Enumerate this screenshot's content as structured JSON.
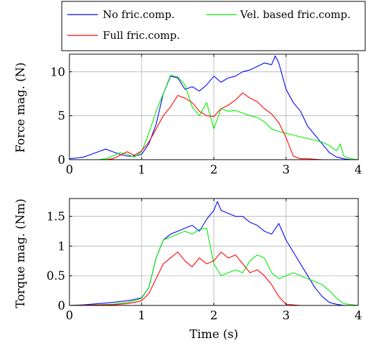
{
  "legend": {
    "entries": [
      {
        "label": "No fric.comp.",
        "color": "#0000ff"
      },
      {
        "label": "Vel. based fric.comp.",
        "color": "#00ee00"
      },
      {
        "label": "Full fric.comp.",
        "color": "#ff0000"
      }
    ]
  },
  "chart_data": [
    {
      "type": "line",
      "title": "",
      "xlabel": "",
      "ylabel": "Force mag. (N)",
      "xlim": [
        0,
        4
      ],
      "ylim": [
        0,
        12
      ],
      "xticks": [
        0,
        1,
        2,
        3,
        4
      ],
      "yticks": [
        0,
        5,
        10
      ],
      "grid": true,
      "series": [
        {
          "name": "No fric.comp.",
          "color": "#0000ff",
          "x": [
            0,
            0.1,
            0.2,
            0.3,
            0.4,
            0.5,
            0.6,
            0.7,
            0.8,
            0.9,
            1.0,
            1.1,
            1.2,
            1.3,
            1.4,
            1.5,
            1.6,
            1.7,
            1.8,
            1.9,
            2.0,
            2.1,
            2.2,
            2.3,
            2.4,
            2.5,
            2.6,
            2.7,
            2.8,
            2.85,
            2.9,
            3.0,
            3.1,
            3.2,
            3.3,
            3.4,
            3.5,
            3.6,
            3.7,
            3.8,
            3.9,
            4.0
          ],
          "y": [
            0.1,
            0.2,
            0.3,
            0.6,
            0.9,
            1.2,
            0.9,
            0.6,
            0.4,
            0.4,
            0.6,
            1.8,
            4.0,
            7.5,
            9.5,
            9.3,
            8.0,
            8.3,
            7.8,
            8.5,
            9.5,
            8.8,
            9.3,
            9.5,
            10.0,
            10.2,
            10.6,
            11.0,
            10.8,
            11.8,
            11.0,
            8.0,
            6.5,
            5.5,
            3.8,
            2.8,
            1.8,
            0.8,
            0.3,
            0.1,
            0.0,
            0.0
          ]
        },
        {
          "name": "Vel. based fric.comp.",
          "color": "#00ee00",
          "x": [
            0,
            0.2,
            0.4,
            0.5,
            0.6,
            0.7,
            0.8,
            0.9,
            1.0,
            1.1,
            1.2,
            1.3,
            1.4,
            1.5,
            1.6,
            1.7,
            1.8,
            1.9,
            2.0,
            2.1,
            2.2,
            2.3,
            2.4,
            2.5,
            2.6,
            2.7,
            2.8,
            2.9,
            3.0,
            3.1,
            3.2,
            3.3,
            3.4,
            3.5,
            3.6,
            3.7,
            3.75,
            3.8,
            3.9,
            4.0
          ],
          "y": [
            0,
            0,
            0,
            0.1,
            0.4,
            0.8,
            0.6,
            0.3,
            0.9,
            3.0,
            5.5,
            7.5,
            9.6,
            9.4,
            8.5,
            6.0,
            5.0,
            6.5,
            3.5,
            5.8,
            5.5,
            5.6,
            5.3,
            5.0,
            4.8,
            4.3,
            3.5,
            3.2,
            3.0,
            2.8,
            2.6,
            2.4,
            2.2,
            2.0,
            1.6,
            1.0,
            1.8,
            0.4,
            0.1,
            0.0
          ]
        },
        {
          "name": "Full fric.comp.",
          "color": "#ff0000",
          "x": [
            0,
            0.5,
            0.6,
            0.7,
            0.8,
            0.9,
            1.0,
            1.1,
            1.2,
            1.3,
            1.4,
            1.5,
            1.6,
            1.7,
            1.8,
            1.9,
            2.0,
            2.1,
            2.2,
            2.3,
            2.4,
            2.5,
            2.6,
            2.7,
            2.8,
            2.9,
            3.0,
            3.1,
            3.2,
            3.3,
            3.5,
            3.7,
            4.0
          ],
          "y": [
            0,
            0,
            0.1,
            0.5,
            0.9,
            0.5,
            1.0,
            2.0,
            3.5,
            5.0,
            6.0,
            7.3,
            7.0,
            6.5,
            5.5,
            5.0,
            4.9,
            5.8,
            6.2,
            6.8,
            7.6,
            7.0,
            6.6,
            5.8,
            5.2,
            4.2,
            2.5,
            0.4,
            0.1,
            0.1,
            0.0,
            0.0,
            0.0
          ]
        }
      ]
    },
    {
      "type": "line",
      "title": "",
      "xlabel": "Time (s)",
      "ylabel": "Torque mag. (Nm)",
      "xlim": [
        0,
        4
      ],
      "ylim": [
        0,
        1.8
      ],
      "xticks": [
        0,
        1,
        2,
        3,
        4
      ],
      "yticks": [
        0,
        0.5,
        1,
        1.5
      ],
      "grid": true,
      "series": [
        {
          "name": "No fric.comp.",
          "color": "#0000ff",
          "x": [
            0,
            0.2,
            0.4,
            0.6,
            0.8,
            0.9,
            1.0,
            1.1,
            1.2,
            1.3,
            1.4,
            1.5,
            1.6,
            1.7,
            1.8,
            1.9,
            2.0,
            2.05,
            2.1,
            2.2,
            2.3,
            2.4,
            2.5,
            2.6,
            2.7,
            2.8,
            2.9,
            3.0,
            3.1,
            3.2,
            3.3,
            3.4,
            3.5,
            3.6,
            3.7,
            3.8,
            4.0
          ],
          "y": [
            0,
            0.01,
            0.03,
            0.05,
            0.08,
            0.1,
            0.13,
            0.3,
            0.8,
            1.1,
            1.2,
            1.25,
            1.3,
            1.35,
            1.25,
            1.45,
            1.6,
            1.75,
            1.6,
            1.55,
            1.5,
            1.5,
            1.4,
            1.35,
            1.25,
            1.2,
            1.38,
            1.1,
            0.9,
            0.7,
            0.5,
            0.3,
            0.15,
            0.05,
            0.02,
            0.0,
            0.0
          ]
        },
        {
          "name": "Vel. based fric.comp.",
          "color": "#00ee00",
          "x": [
            0,
            0.4,
            0.6,
            0.8,
            0.9,
            1.0,
            1.1,
            1.2,
            1.3,
            1.4,
            1.5,
            1.6,
            1.7,
            1.8,
            1.9,
            2.0,
            2.1,
            2.2,
            2.3,
            2.4,
            2.5,
            2.6,
            2.7,
            2.8,
            2.9,
            3.0,
            3.1,
            3.2,
            3.3,
            3.4,
            3.5,
            3.6,
            3.7,
            3.8,
            4.0
          ],
          "y": [
            0,
            0.01,
            0.02,
            0.05,
            0.08,
            0.12,
            0.3,
            0.8,
            1.1,
            1.15,
            1.2,
            1.25,
            1.2,
            1.28,
            1.3,
            0.7,
            0.5,
            0.55,
            0.6,
            0.55,
            0.75,
            0.85,
            0.8,
            0.55,
            0.45,
            0.5,
            0.55,
            0.5,
            0.45,
            0.4,
            0.35,
            0.25,
            0.12,
            0.03,
            0.0
          ]
        },
        {
          "name": "Full fric.comp.",
          "color": "#ff0000",
          "x": [
            0,
            0.6,
            0.8,
            0.9,
            1.0,
            1.1,
            1.2,
            1.3,
            1.4,
            1.5,
            1.6,
            1.7,
            1.8,
            1.9,
            2.0,
            2.1,
            2.2,
            2.3,
            2.4,
            2.5,
            2.6,
            2.7,
            2.8,
            2.9,
            3.0,
            3.2,
            3.5,
            4.0
          ],
          "y": [
            0,
            0.01,
            0.03,
            0.05,
            0.08,
            0.2,
            0.45,
            0.7,
            0.8,
            0.9,
            0.75,
            0.65,
            0.8,
            0.7,
            0.75,
            0.9,
            0.8,
            0.85,
            0.7,
            0.55,
            0.6,
            0.5,
            0.35,
            0.15,
            0.02,
            0.0,
            0.0,
            0.0
          ]
        }
      ]
    }
  ]
}
